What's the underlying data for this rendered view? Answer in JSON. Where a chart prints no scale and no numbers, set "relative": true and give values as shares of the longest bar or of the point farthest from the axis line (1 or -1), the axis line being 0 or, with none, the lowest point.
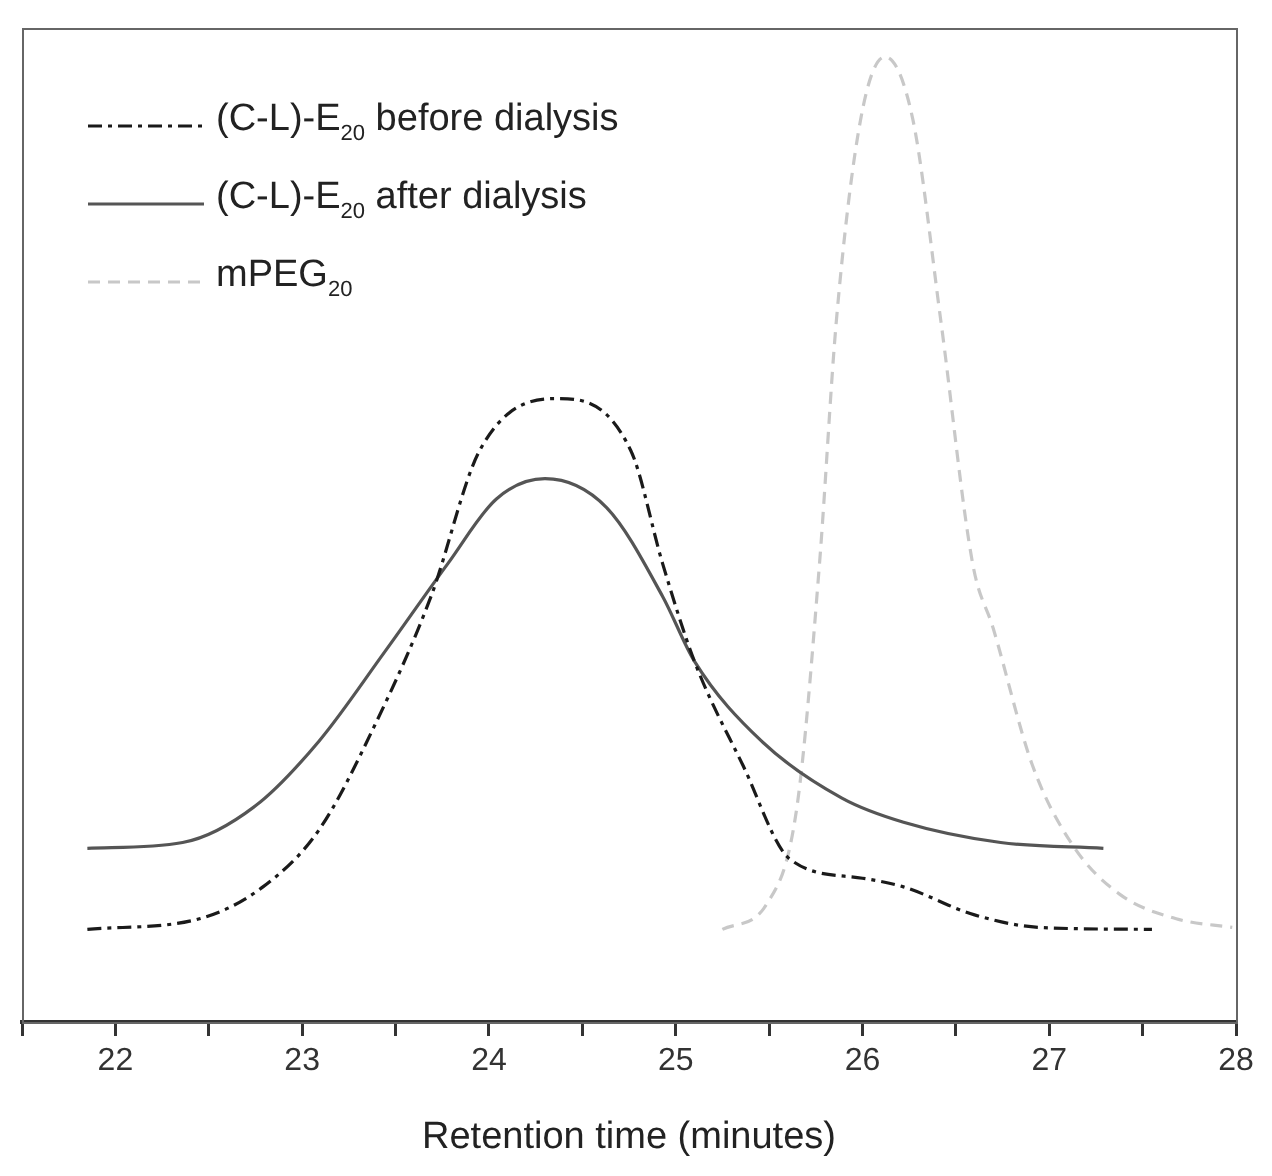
{
  "chart_data": {
    "type": "line",
    "xlabel": "Retention time (minutes)",
    "relative": true,
    "legend": "top left",
    "grid": false,
    "marker": "none",
    "xlim": [
      21.5,
      28
    ],
    "xticks": [
      {
        "value": 21.5,
        "label": null
      },
      22,
      {
        "value": 22.5,
        "label": null
      },
      23,
      {
        "value": 23.5,
        "label": null
      },
      24,
      {
        "value": 24.5,
        "label": null
      },
      25,
      {
        "value": 25.5,
        "label": null
      },
      26,
      {
        "value": 26.5,
        "label": null
      },
      27,
      {
        "value": 27.5,
        "label": null
      },
      28
    ],
    "series": [
      {
        "name": "(C-L)-E$_{20}$ before dialysis",
        "color": "#1a1a1a",
        "line_style": "dashdot",
        "x": [
          21.85,
          22.45,
          22.79,
          23.09,
          23.39,
          23.69,
          23.95,
          24.36,
          24.76,
          24.93,
          25.1,
          25.36,
          25.61,
          26.0,
          26.22,
          26.6,
          26.95,
          27.55
        ],
        "values": [
          0.096,
          0.107,
          0.14,
          0.199,
          0.308,
          0.441,
          0.592,
          0.646,
          0.592,
          0.475,
          0.374,
          0.266,
          0.169,
          0.149,
          0.14,
          0.111,
          0.098,
          0.096
        ]
      },
      {
        "name": "(C-L)-E$_{20}$ after dialysis",
        "color": "#555555",
        "line_style": "solid",
        "x": [
          21.85,
          22.36,
          22.75,
          23.09,
          23.44,
          23.78,
          24.04,
          24.3,
          24.63,
          24.93,
          25.1,
          25.46,
          25.89,
          26.22,
          26.74,
          27.29
        ],
        "values": [
          0.18,
          0.186,
          0.224,
          0.291,
          0.383,
          0.475,
          0.542,
          0.563,
          0.533,
          0.441,
          0.374,
          0.291,
          0.232,
          0.207,
          0.186,
          0.18
        ]
      },
      {
        "name": "mPEG$_{20}$",
        "color": "#c8c8c8",
        "line_style": "dashed",
        "x": [
          25.25,
          25.49,
          25.65,
          25.77,
          25.86,
          25.99,
          26.12,
          26.27,
          26.42,
          26.59,
          26.7,
          26.91,
          27.13,
          27.38,
          27.68,
          27.98
        ],
        "values": [
          0.096,
          0.123,
          0.224,
          0.475,
          0.726,
          0.935,
          1.0,
          0.935,
          0.726,
          0.475,
          0.408,
          0.266,
          0.182,
          0.132,
          0.107,
          0.098
        ]
      }
    ]
  }
}
